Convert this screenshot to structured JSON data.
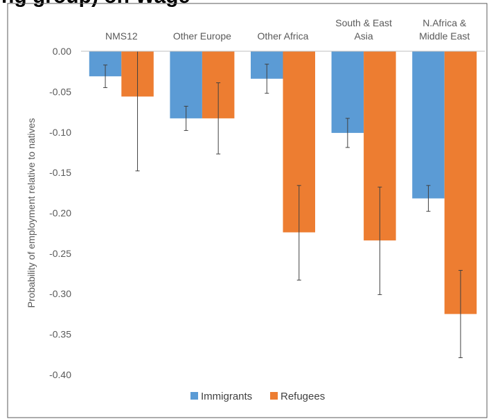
{
  "top_text": "ng group) on Wage",
  "chart_data": {
    "type": "bar",
    "categories": [
      [
        "NMS12"
      ],
      [
        "Other Europe"
      ],
      [
        "Other Africa"
      ],
      [
        "South & East",
        "Asia"
      ],
      [
        "N.Africa &",
        "Middle East"
      ]
    ],
    "series": [
      {
        "name": "Immigrants",
        "color": "#5b9bd5",
        "values": [
          -0.031,
          -0.083,
          -0.034,
          -0.101,
          -0.182
        ],
        "error_low": [
          -0.045,
          -0.098,
          -0.052,
          -0.119,
          -0.198
        ],
        "error_high": [
          -0.017,
          -0.068,
          -0.016,
          -0.083,
          -0.166
        ]
      },
      {
        "name": "Refugees",
        "color": "#ed7d31",
        "values": [
          -0.056,
          -0.083,
          -0.224,
          -0.234,
          -0.325
        ],
        "error_low": [
          -0.148,
          -0.127,
          -0.283,
          -0.301,
          -0.379
        ],
        "error_high": [
          0.0,
          -0.039,
          -0.166,
          -0.168,
          -0.271
        ]
      }
    ],
    "ylabel": "Probability of employment relative to natives",
    "yticks": [
      "0.00",
      "-0.05",
      "-0.10",
      "-0.15",
      "-0.20",
      "-0.25",
      "-0.30",
      "-0.35",
      "-0.40"
    ],
    "ylim": [
      -0.4,
      0.0
    ],
    "legend_position": "bottom",
    "grid": false
  }
}
